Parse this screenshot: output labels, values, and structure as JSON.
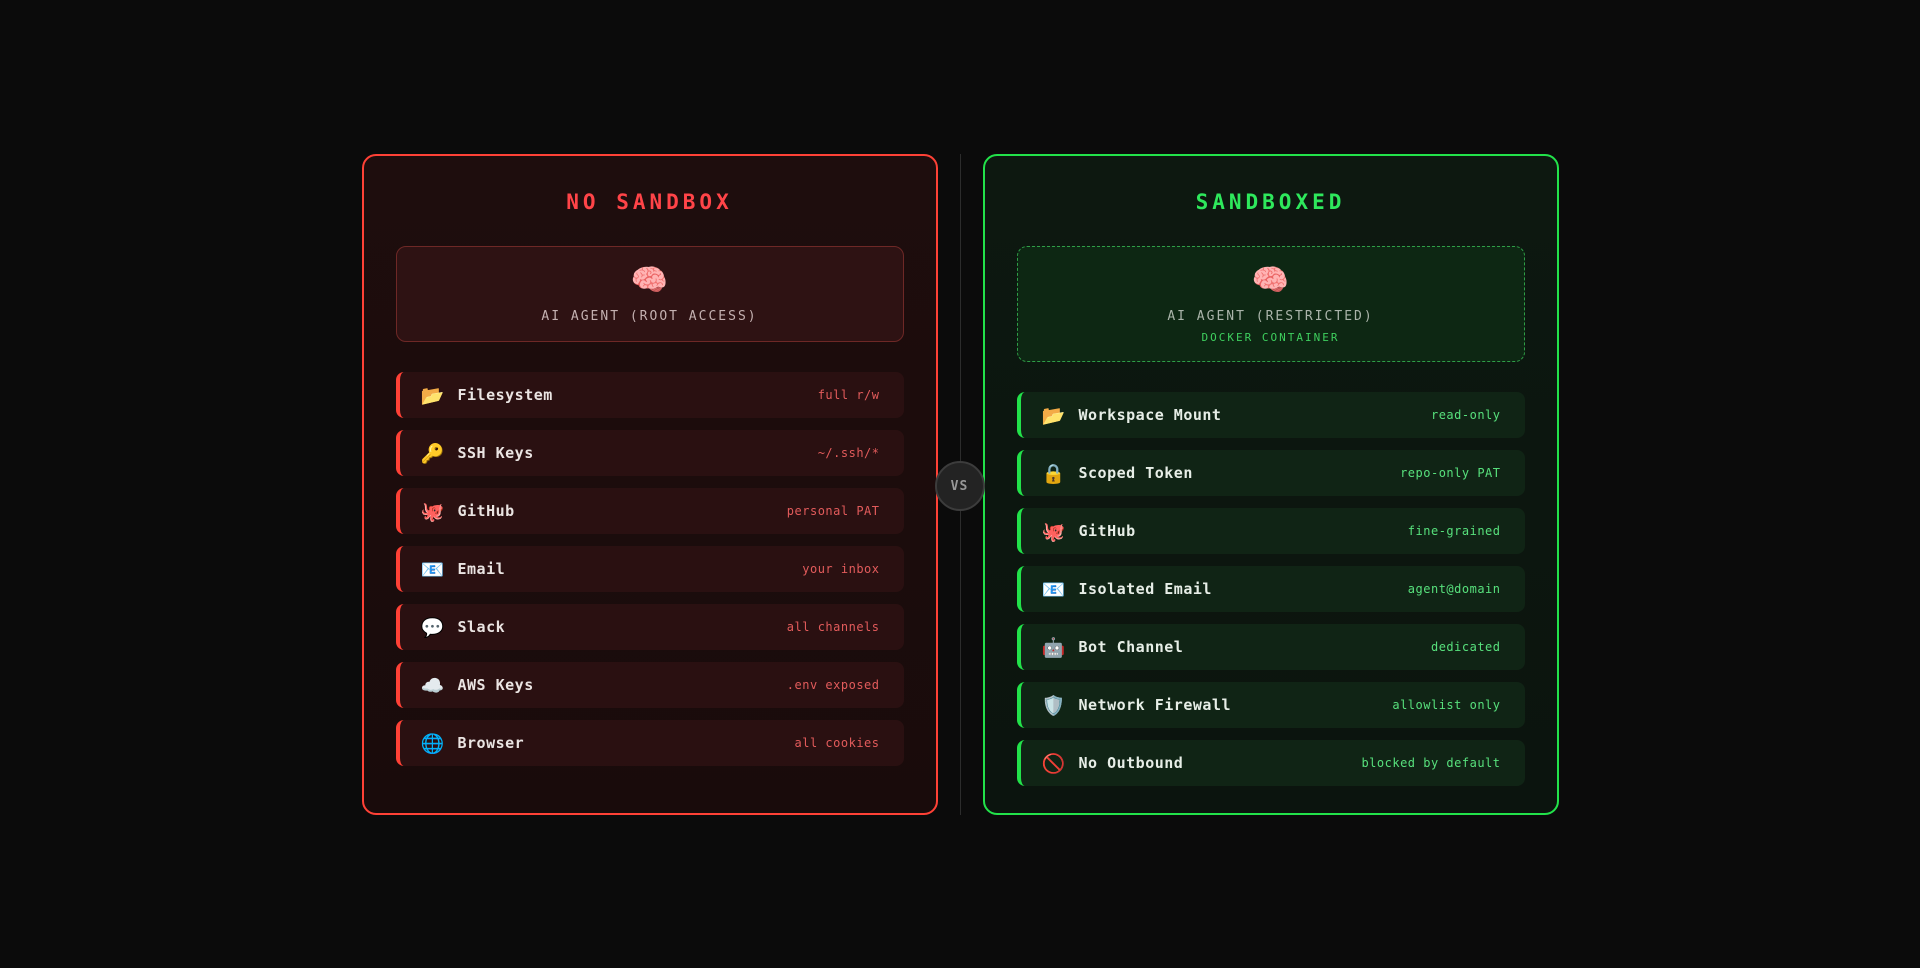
{
  "vs_badge": {
    "label": "VS"
  },
  "left_panel": {
    "title": "NO SANDBOX",
    "agent_card": {
      "icon": "🧠",
      "icon_name": "brain-icon",
      "title": "AI AGENT (ROOT ACCESS)"
    },
    "rows": [
      {
        "icon": "📂",
        "icon_name": "folder-icon",
        "label": "Filesystem",
        "value": "full r/w"
      },
      {
        "icon": "🔑",
        "icon_name": "key-icon",
        "label": "SSH Keys",
        "value": "~/.ssh/*"
      },
      {
        "icon": "🐙",
        "icon_name": "octopus-icon",
        "label": "GitHub",
        "value": "personal PAT"
      },
      {
        "icon": "📧",
        "icon_name": "email-icon",
        "label": "Email",
        "value": "your inbox"
      },
      {
        "icon": "💬",
        "icon_name": "speech-balloon-icon",
        "label": "Slack",
        "value": "all channels"
      },
      {
        "icon": "☁️",
        "icon_name": "cloud-icon",
        "label": "AWS Keys",
        "value": ".env exposed"
      },
      {
        "icon": "🌐",
        "icon_name": "globe-icon",
        "label": "Browser",
        "value": "all cookies"
      }
    ],
    "colors": {
      "border": "#ff4136",
      "title": "#ff4448",
      "value": "#e25b5b"
    }
  },
  "right_panel": {
    "title": "SANDBOXED",
    "agent_card": {
      "icon": "🧠",
      "icon_name": "brain-icon",
      "title": "AI AGENT (RESTRICTED)",
      "subtitle": "DOCKER CONTAINER"
    },
    "rows": [
      {
        "icon": "📂",
        "icon_name": "folder-icon",
        "label": "Workspace Mount",
        "value": "read-only"
      },
      {
        "icon": "🔒",
        "icon_name": "lock-icon",
        "label": "Scoped Token",
        "value": "repo-only PAT"
      },
      {
        "icon": "🐙",
        "icon_name": "octopus-icon",
        "label": "GitHub",
        "value": "fine-grained"
      },
      {
        "icon": "📧",
        "icon_name": "email-icon",
        "label": "Isolated Email",
        "value": "agent@domain"
      },
      {
        "icon": "🤖",
        "icon_name": "robot-icon",
        "label": "Bot Channel",
        "value": "dedicated"
      },
      {
        "icon": "🛡️",
        "icon_name": "shield-icon",
        "label": "Network Firewall",
        "value": "allowlist only"
      },
      {
        "icon": "🚫",
        "icon_name": "no-entry-icon",
        "label": "No Outbound",
        "value": "blocked by default"
      }
    ],
    "colors": {
      "border": "#22e24a",
      "title": "#2ee85c",
      "value": "#57e07c"
    }
  }
}
